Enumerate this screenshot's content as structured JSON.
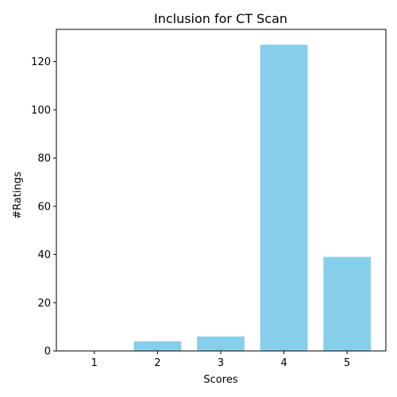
{
  "chart_data": {
    "type": "bar",
    "title": "Inclusion for CT Scan",
    "xlabel": "Scores",
    "ylabel": "#Ratings",
    "categories": [
      "1",
      "2",
      "3",
      "4",
      "5"
    ],
    "values": [
      0,
      4,
      6,
      127,
      39
    ],
    "ylim": [
      0,
      133.35
    ],
    "yticks": [
      0,
      20,
      40,
      60,
      80,
      100,
      120
    ],
    "bar_color": "#87ceeb",
    "grid": false
  }
}
